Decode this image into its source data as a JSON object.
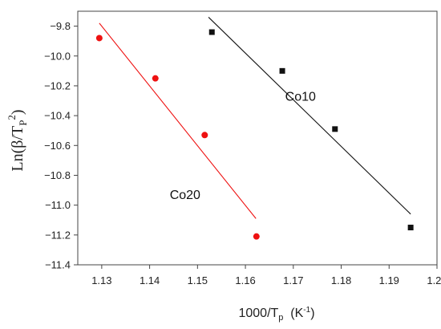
{
  "chart_data": {
    "type": "scatter",
    "xlabel": {
      "main": "1000/T",
      "sub": "p",
      "unit_open": "  (K",
      "unit_sup": "-1",
      "unit_close": ")"
    },
    "ylabel": {
      "main": "Ln(β/T",
      "sub": "P",
      "sup": "2",
      "close": ")"
    },
    "xlim": [
      1.125,
      1.2
    ],
    "ylim": [
      -11.4,
      -9.7
    ],
    "x_ticks": [
      1.13,
      1.14,
      1.15,
      1.16,
      1.17,
      1.18,
      1.19,
      1.2
    ],
    "x_tick_labels": [
      "1.13",
      "1.14",
      "1.15",
      "1.16",
      "1.17",
      "1.18",
      "1.19",
      "1.20"
    ],
    "y_ticks": [
      -9.8,
      -10.0,
      -10.2,
      -10.4,
      -10.6,
      -10.8,
      -11.0,
      -11.2,
      -11.4
    ],
    "y_tick_labels": [
      "−9.8",
      "−10.0",
      "−10.2",
      "−10.4",
      "−10.6",
      "−10.8",
      "−11.0",
      "−11.2",
      "−11.4"
    ],
    "series": [
      {
        "name": "Co20",
        "color": "#ee1111",
        "marker": "circle",
        "points": [
          [
            1.1295,
            -9.88
          ],
          [
            1.1412,
            -10.15
          ],
          [
            1.1515,
            -10.53
          ],
          [
            1.1623,
            -11.21
          ]
        ],
        "fit_line": [
          [
            1.1295,
            -9.78
          ],
          [
            1.1622,
            -11.09
          ]
        ]
      },
      {
        "name": "Co10",
        "color": "#111111",
        "marker": "square",
        "points": [
          [
            1.153,
            -9.84
          ],
          [
            1.1677,
            -10.1
          ],
          [
            1.1787,
            -10.49
          ],
          [
            1.1945,
            -11.15
          ]
        ],
        "fit_line": [
          [
            1.1523,
            -9.74
          ],
          [
            1.1945,
            -11.06
          ]
        ]
      }
    ],
    "annotations": [
      {
        "text": "Co10",
        "x": 1.1683,
        "y": -10.3
      },
      {
        "text": "Co20",
        "x": 1.1442,
        "y": -10.96
      }
    ]
  }
}
